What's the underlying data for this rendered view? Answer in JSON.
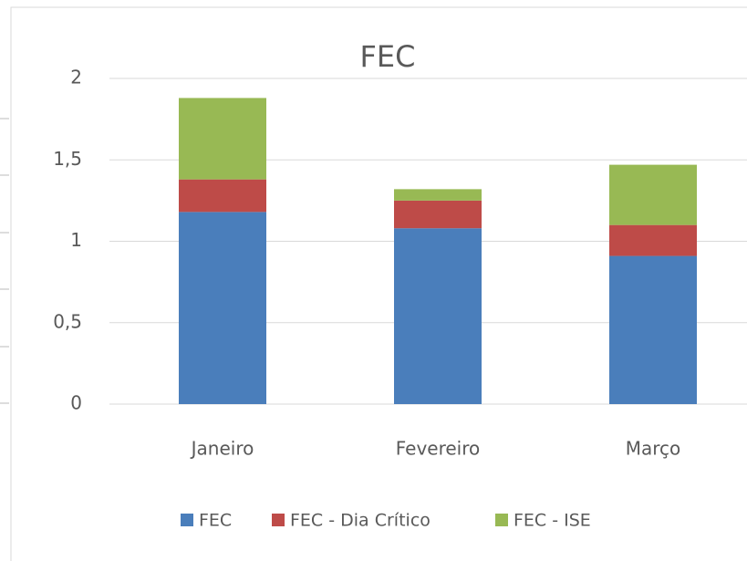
{
  "chart_data": {
    "type": "stacked_bar",
    "title": "FEC",
    "categories": [
      "Janeiro",
      "Fevereiro",
      "Março"
    ],
    "series": [
      {
        "name": "FEC",
        "color": "#4a7ebb",
        "values": [
          1.18,
          1.08,
          0.91
        ]
      },
      {
        "name": "FEC - Dia Crítico",
        "color": "#be4b48",
        "values": [
          0.2,
          0.17,
          0.19
        ]
      },
      {
        "name": "FEC - ISE",
        "color": "#98b954",
        "values": [
          0.5,
          0.07,
          0.37
        ]
      }
    ],
    "ylim": [
      0,
      2
    ],
    "yticks": [
      0,
      {
        "value": 0.5,
        "label": "0,5"
      },
      1,
      {
        "value": 1.5,
        "label": "1,5"
      },
      2
    ],
    "grid": true,
    "legend": "bottom"
  }
}
